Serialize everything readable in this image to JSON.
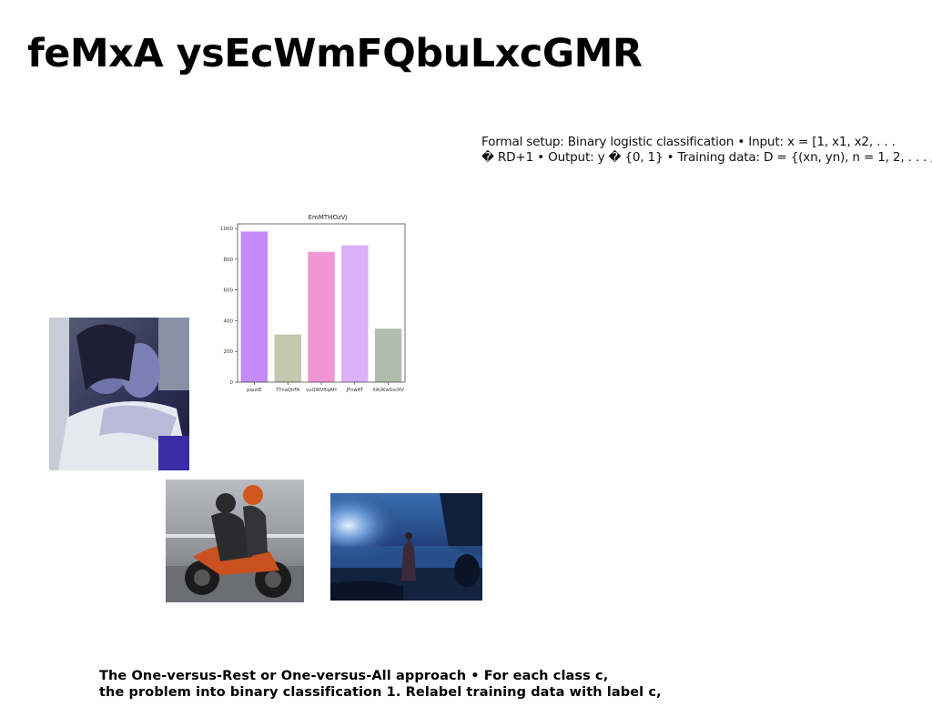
{
  "slide": {
    "title": "feMxA ysEcWmFQbuLxcGMR",
    "setup_lines": [
      "Formal setup: Binary logistic classification • Input: x = [1, x1, x2, . . .",
      "� RD+1 • Output: y � {0, 1} • Training data: D = {(xn, yn), n = 1, 2, . . . ,"
    ],
    "bottom_lines": [
      "The One-versus-Rest or One-versus-All approach • For each class c,",
      "the problem into binary classification 1. Relabel training data with label c,"
    ]
  },
  "images": [
    {
      "name": "photo-two-women-car"
    },
    {
      "name": "photo-motorcycle-riders"
    },
    {
      "name": "photo-woman-beach-night"
    }
  ],
  "chart_data": {
    "type": "bar",
    "title": "EmMTHOzVj",
    "categories": [
      "pqudE",
      "TYnaQhFA",
      "vuQWVftqAH",
      "JFnwAT",
      "XAUKwSvcRV"
    ],
    "values": [
      980,
      310,
      848,
      890,
      348
    ],
    "colors": [
      "#c58af7",
      "#c2c7b0",
      "#f295d6",
      "#dcaffb",
      "#b1beae"
    ],
    "ylim": [
      0,
      1030
    ],
    "yticks": [
      0,
      200,
      400,
      600,
      800,
      1000
    ],
    "xlabel": "",
    "ylabel": ""
  }
}
